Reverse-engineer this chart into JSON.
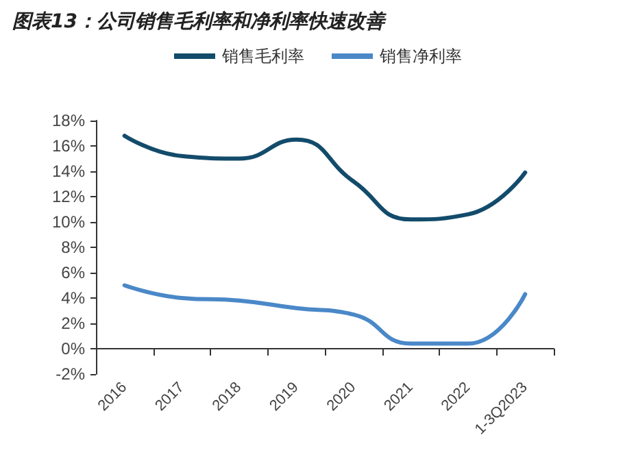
{
  "chart_data": {
    "type": "line",
    "title": "图表13：公司销售毛利率和净利率快速改善",
    "categories": [
      "2016",
      "2017",
      "2018",
      "2019",
      "2020",
      "2021",
      "2022",
      "1-3Q2023"
    ],
    "series": [
      {
        "name": "销售毛利率",
        "color": "#134b6b",
        "values": [
          16.8,
          15.2,
          15.0,
          16.5,
          13.2,
          10.2,
          10.6,
          13.9
        ]
      },
      {
        "name": "销售净利率",
        "color": "#4a88c8",
        "values": [
          5.0,
          4.0,
          3.8,
          3.2,
          2.7,
          0.4,
          0.4,
          4.3
        ]
      }
    ],
    "ylim": [
      -2,
      18
    ],
    "yticks": [
      {
        "value": -2,
        "label": "-2%"
      },
      {
        "value": 0,
        "label": "0%"
      },
      {
        "value": 2,
        "label": "2%"
      },
      {
        "value": 4,
        "label": "4%"
      },
      {
        "value": 6,
        "label": "6%"
      },
      {
        "value": 8,
        "label": "8%"
      },
      {
        "value": 10,
        "label": "10%"
      },
      {
        "value": 12,
        "label": "12%"
      },
      {
        "value": 14,
        "label": "14%"
      },
      {
        "value": 16,
        "label": "16%"
      },
      {
        "value": 18,
        "label": "18%"
      }
    ],
    "legend": "top",
    "grid": false,
    "marker": "none",
    "line_style": "solid"
  }
}
